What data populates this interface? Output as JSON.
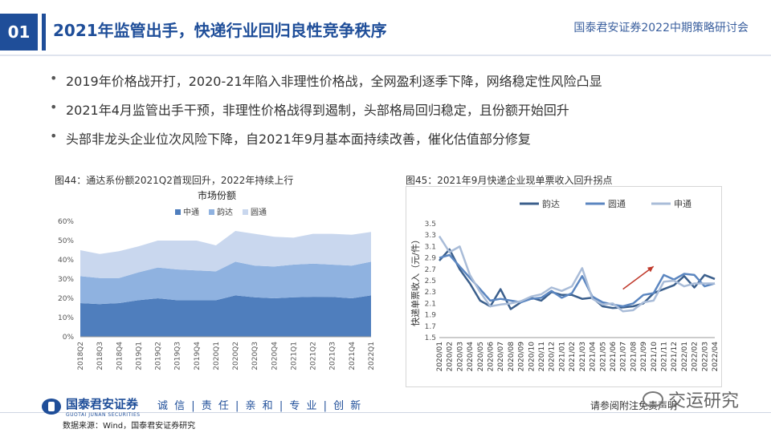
{
  "header": {
    "section_number": "01",
    "title": "2021年监管出手，快递行业回归良性竞争秩序",
    "conference": "国泰君安证券2022中期策略研讨会"
  },
  "bullets": [
    "2019年价格战开打，2020-21年陷入非理性价格战，全网盈利逐季下降，网络稳定性风险凸显",
    "2021年4月监管出手干预，非理性价格战得到遏制，头部格局回归稳定，且份额开始回升",
    "头部非龙头企业位次风险下降，自2021年9月基本面持续改善，催化估值部分修复"
  ],
  "figure44_caption": "图44：通达系份额2021Q2首现回升，2022年持续上行",
  "figure45_caption": "图45：2021年9月快递企业现单票收入回升拐点",
  "footer": {
    "logo_name": "国泰君安证券",
    "logo_sub": "GUOTAI JUNAN SECURITIES",
    "slogan": "诚 信 | 责 任 | 亲 和 | 专 业 | 创 新",
    "source": "数据来源：Wind，国泰君安证券研究",
    "disclaimer": "请参阅附注免责声明",
    "watermark": "交运研究"
  },
  "colors": {
    "brand": "#1f4e99",
    "zto": "#4f7ebd",
    "yunda": "#8fb2e0",
    "yto": "#c9d7ee",
    "yunda_line": "#3b5f8c",
    "yto_line": "#5b86c0",
    "sto_line": "#a9bcd8",
    "arrow": "#c0392b"
  },
  "chart_data": [
    {
      "type": "area",
      "stacked": true,
      "title": "市场份额",
      "categories": [
        "2018Q2",
        "2018Q3",
        "2018Q4",
        "2019Q1",
        "2019Q2",
        "2019Q3",
        "2019Q4",
        "2020Q1",
        "2020Q2",
        "2020Q3",
        "2020Q4",
        "2021Q1",
        "2021Q2",
        "2021Q3",
        "2021Q4",
        "2022Q1"
      ],
      "series": [
        {
          "name": "中通",
          "values": [
            17.5,
            17.0,
            17.5,
            19.0,
            20.0,
            19.0,
            19.0,
            19.0,
            21.5,
            20.5,
            20.0,
            20.5,
            20.8,
            20.7,
            20.0,
            21.5
          ]
        },
        {
          "name": "韵达",
          "values": [
            14.0,
            13.5,
            13.0,
            14.5,
            16.0,
            16.0,
            15.5,
            15.0,
            17.5,
            16.5,
            16.5,
            17.0,
            17.2,
            16.8,
            17.0,
            17.5
          ]
        },
        {
          "name": "圆通",
          "values": [
            13.5,
            12.5,
            14.0,
            13.5,
            14.0,
            15.0,
            15.5,
            13.5,
            16.0,
            16.5,
            15.5,
            14.0,
            15.5,
            16.0,
            16.0,
            15.5
          ]
        }
      ],
      "ylim": [
        0,
        60
      ],
      "yticks": [
        "0%",
        "10%",
        "20%",
        "30%",
        "40%",
        "50%",
        "60%"
      ],
      "legend_position": "top"
    },
    {
      "type": "line",
      "ylabel": "快递单票收入（元/件）",
      "categories": [
        "2020/01",
        "2020/02",
        "2020/03",
        "2020/04",
        "2020/05",
        "2020/06",
        "2020/07",
        "2020/08",
        "2020/09",
        "2020/10",
        "2020/11",
        "2020/12",
        "2021/01",
        "2021/02",
        "2021/03",
        "2021/04",
        "2021/05",
        "2021/06",
        "2021/07",
        "2021/08",
        "2021/09",
        "2021/10",
        "2021/11",
        "2021/12",
        "2022/01",
        "2022/02",
        "2022/03",
        "2022/04"
      ],
      "series": [
        {
          "name": "韵达",
          "values": [
            2.85,
            3.05,
            2.7,
            2.45,
            2.15,
            2.05,
            2.35,
            2.0,
            2.12,
            2.2,
            2.15,
            2.3,
            2.25,
            2.25,
            2.18,
            2.2,
            2.05,
            2.02,
            2.03,
            2.05,
            2.1,
            2.28,
            2.35,
            2.42,
            2.58,
            2.38,
            2.6,
            2.53
          ]
        },
        {
          "name": "圆通",
          "values": [
            2.9,
            2.95,
            2.75,
            2.55,
            2.35,
            2.15,
            2.18,
            2.15,
            2.12,
            2.18,
            2.2,
            2.32,
            2.2,
            2.28,
            2.58,
            2.22,
            2.12,
            2.08,
            2.05,
            2.1,
            2.25,
            2.28,
            2.6,
            2.52,
            2.62,
            2.6,
            2.4,
            2.45
          ]
        },
        {
          "name": "申通",
          "values": [
            3.28,
            3.0,
            3.1,
            2.6,
            2.3,
            2.05,
            2.08,
            2.1,
            2.14,
            2.22,
            2.26,
            2.38,
            2.32,
            2.4,
            2.72,
            2.18,
            2.08,
            2.1,
            1.96,
            1.98,
            2.12,
            2.15,
            2.48,
            2.5,
            2.4,
            2.45,
            2.45,
            2.45
          ]
        }
      ],
      "ylim": [
        1.5,
        3.5
      ],
      "yticks": [
        "1.5",
        "1.7",
        "1.9",
        "2.1",
        "2.3",
        "2.5",
        "2.7",
        "2.9",
        "3.1",
        "3.3",
        "3.5"
      ],
      "legend_position": "top",
      "annotation": "upward red arrow from 2021/07 toward 2021/10"
    }
  ]
}
